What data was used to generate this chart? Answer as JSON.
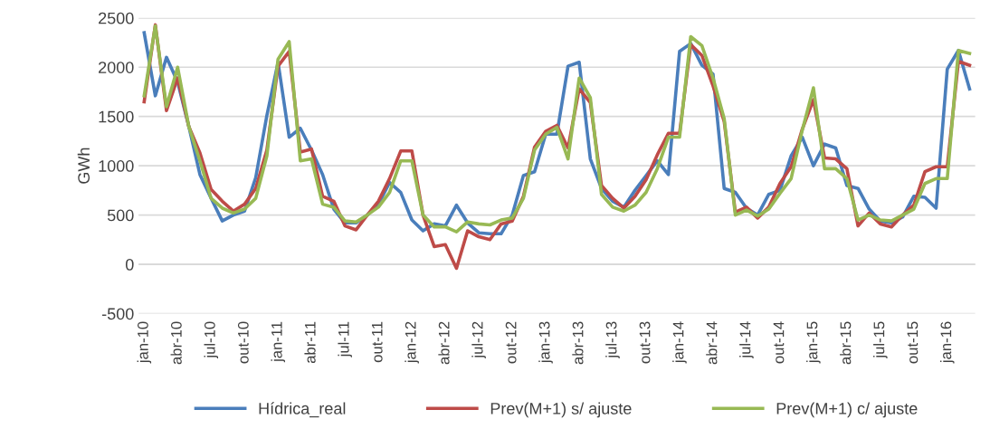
{
  "chart_data": {
    "type": "line",
    "ylabel": "GWh",
    "categories": [
      "jan-10",
      null,
      null,
      "abr-10",
      null,
      null,
      "jul-10",
      null,
      null,
      "out-10",
      null,
      null,
      "jan-11",
      null,
      null,
      "abr-11",
      null,
      null,
      "jul-11",
      null,
      null,
      "out-11",
      null,
      null,
      "jan-12",
      null,
      null,
      "abr-12",
      null,
      null,
      "jul-12",
      null,
      null,
      "out-12",
      null,
      null,
      "jan-13",
      null,
      null,
      "abr-13",
      null,
      null,
      "jul-13",
      null,
      null,
      "out-13",
      null,
      null,
      "jan-14",
      null,
      null,
      "abr-14",
      null,
      null,
      "jul-14",
      null,
      null,
      "out-14",
      null,
      null,
      "jan-15",
      null,
      null,
      "abr-15",
      null,
      null,
      "jul-15",
      null,
      null,
      "out-15",
      null,
      null,
      "jan-16",
      null,
      null
    ],
    "series": [
      {
        "name": "Hídrica_real",
        "color": "#4a7ebb",
        "values": [
          2350,
          1710,
          2100,
          1850,
          1400,
          910,
          670,
          440,
          500,
          540,
          880,
          1510,
          2050,
          1290,
          1380,
          1160,
          910,
          560,
          420,
          420,
          500,
          610,
          830,
          730,
          450,
          340,
          410,
          390,
          600,
          420,
          320,
          310,
          310,
          500,
          900,
          940,
          1320,
          1320,
          2010,
          2050,
          1070,
          770,
          640,
          580,
          750,
          900,
          1050,
          910,
          2160,
          2240,
          2020,
          1930,
          770,
          730,
          570,
          500,
          710,
          750,
          1100,
          1290,
          1000,
          1220,
          1180,
          800,
          770,
          560,
          440,
          420,
          480,
          690,
          680,
          570,
          1980,
          2170,
          1780
        ]
      },
      {
        "name": "Prev(M+1) s/ ajuste",
        "color": "#be4b48",
        "values": [
          1650,
          2430,
          1560,
          1890,
          1400,
          1130,
          760,
          640,
          540,
          610,
          770,
          1160,
          2010,
          2160,
          1140,
          1170,
          690,
          640,
          390,
          350,
          500,
          640,
          870,
          1150,
          1150,
          500,
          180,
          200,
          -40,
          340,
          280,
          250,
          410,
          440,
          690,
          1190,
          1350,
          1410,
          1180,
          1780,
          1640,
          800,
          670,
          570,
          690,
          860,
          1110,
          1330,
          1330,
          2230,
          2120,
          1810,
          1450,
          530,
          580,
          470,
          580,
          820,
          990,
          1370,
          1670,
          1080,
          1070,
          970,
          390,
          520,
          410,
          380,
          500,
          600,
          940,
          990,
          990,
          2060,
          2020
        ]
      },
      {
        "name": "Prev(M+1) c/ ajuste",
        "color": "#98b954",
        "values": [
          1710,
          2420,
          1600,
          2000,
          1400,
          1050,
          670,
          570,
          520,
          560,
          670,
          1100,
          2080,
          2260,
          1050,
          1070,
          610,
          580,
          440,
          430,
          500,
          580,
          730,
          1050,
          1050,
          500,
          380,
          380,
          330,
          430,
          410,
          400,
          450,
          470,
          670,
          1160,
          1320,
          1390,
          1070,
          1890,
          1690,
          710,
          580,
          540,
          600,
          730,
          970,
          1290,
          1290,
          2310,
          2220,
          1890,
          1480,
          500,
          550,
          490,
          560,
          720,
          870,
          1360,
          1790,
          970,
          970,
          870,
          450,
          500,
          450,
          440,
          500,
          560,
          820,
          870,
          870,
          2170,
          2140
        ]
      }
    ],
    "ylim": [
      -500,
      2500
    ],
    "yticks": [
      -500,
      0,
      500,
      1000,
      1500,
      2000,
      2500
    ],
    "grid": "y",
    "legend": "bottom",
    "marker": "none",
    "line_style": "solid"
  }
}
